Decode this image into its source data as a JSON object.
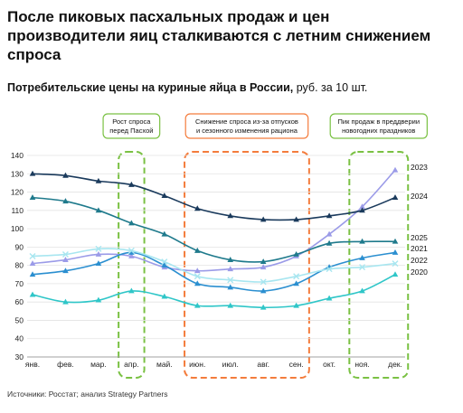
{
  "title": "После пиковых пасхальных продаж и цен производители яиц сталкиваются с летним снижением спроса",
  "subtitle_bold": "Потребительские цены на куриные яйца в России,",
  "subtitle_rest": " руб. за 10 шт.",
  "source": "Источники: Росстат; анализ Strategy Partners",
  "annotations": [
    {
      "lines": [
        "Рост спроса",
        "перед Пасхой"
      ],
      "color": "#7ac143",
      "months": [
        3,
        3
      ]
    },
    {
      "lines": [
        "Снижение спроса из-за отпусков",
        "и сезонного изменения рациона"
      ],
      "color": "#f47c3c",
      "months": [
        5,
        8
      ]
    },
    {
      "lines": [
        "Пик продаж в преддверии",
        "новогодних праздников"
      ],
      "color": "#7ac143",
      "months": [
        10,
        11
      ]
    }
  ],
  "chart_data": {
    "type": "line",
    "categories": [
      "янв.",
      "фев.",
      "мар.",
      "апр.",
      "май.",
      "июн.",
      "июл.",
      "авг.",
      "сен.",
      "окт.",
      "ноя.",
      "дек."
    ],
    "ylim": [
      30,
      140
    ],
    "yticks": [
      30,
      40,
      50,
      60,
      70,
      80,
      90,
      100,
      110,
      120,
      130,
      140
    ],
    "series": [
      {
        "name": "2023",
        "color": "#9b9be8",
        "marker": "triangle",
        "values": [
          81,
          83,
          86,
          85,
          79,
          77,
          78,
          79,
          85,
          97,
          112,
          132
        ]
      },
      {
        "name": "2024",
        "color": "#1a3a5c",
        "marker": "triangle",
        "values": [
          130,
          129,
          126,
          124,
          118,
          111,
          107,
          105,
          105,
          107,
          110,
          117
        ]
      },
      {
        "name": "2025",
        "color": "#1f7a8c",
        "marker": "triangle",
        "values": [
          117,
          115,
          110,
          103,
          97,
          88,
          83,
          82,
          86,
          92,
          93,
          93
        ]
      },
      {
        "name": "2021",
        "color": "#2b8fd0",
        "marker": "triangle",
        "values": [
          75,
          77,
          81,
          87,
          80,
          70,
          68,
          66,
          70,
          79,
          84,
          87
        ]
      },
      {
        "name": "2022",
        "color": "#a8e6f0",
        "marker": "cross",
        "values": [
          85,
          86,
          89,
          88,
          82,
          74,
          72,
          71,
          74,
          78,
          79,
          81
        ]
      },
      {
        "name": "2020",
        "color": "#2fc6c8",
        "marker": "triangle",
        "values": [
          64,
          60,
          61,
          66,
          63,
          58,
          58,
          57,
          58,
          62,
          66,
          75
        ]
      }
    ]
  }
}
